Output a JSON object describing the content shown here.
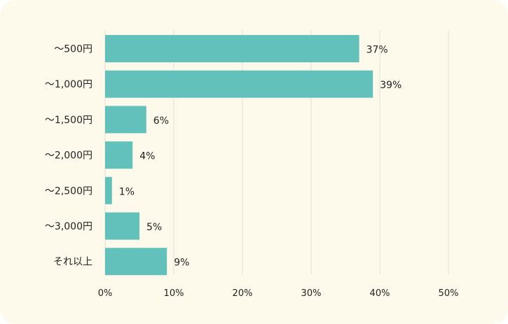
{
  "chart_data": {
    "type": "bar",
    "orientation": "horizontal",
    "categories": [
      "～500円",
      "～1,000円",
      "～1,500円",
      "～2,000円",
      "～2,500円",
      "～3,000円",
      "それ以上"
    ],
    "values": [
      37,
      39,
      6,
      4,
      1,
      5,
      9
    ],
    "value_labels": [
      "37%",
      "39%",
      "6%",
      "4%",
      "1%",
      "5%",
      "9%"
    ],
    "xlim": [
      0,
      50
    ],
    "x_ticks": [
      0,
      10,
      20,
      30,
      40,
      50
    ],
    "x_tick_labels": [
      "0%",
      "10%",
      "20%",
      "30%",
      "40%",
      "50%"
    ],
    "grid": "vertical",
    "bar_color": "#62c1ba",
    "grid_color": "#e3e0d3",
    "background_color": "#fdfaec",
    "title": "",
    "xlabel": "",
    "ylabel": ""
  }
}
